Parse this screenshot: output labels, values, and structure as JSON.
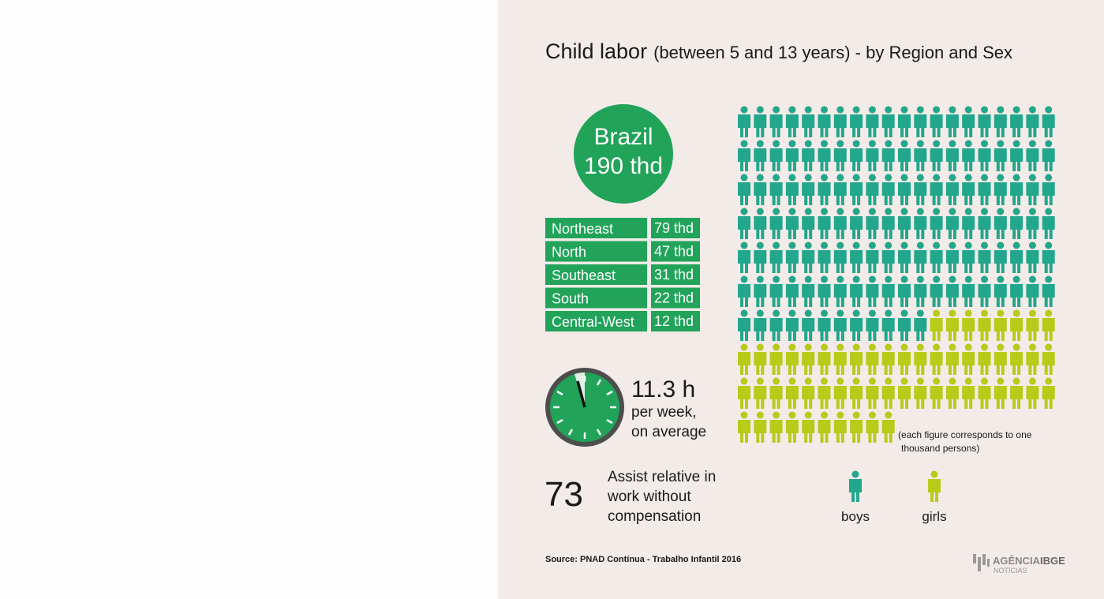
{
  "title": {
    "main": "Child labor",
    "sub": "(between 5 and 13 years) - by Region and Sex"
  },
  "brazil": {
    "name": "Brazil",
    "value": "190 thd"
  },
  "regions": [
    {
      "name": "Northeast",
      "value": "79 thd"
    },
    {
      "name": "North",
      "value": "47 thd"
    },
    {
      "name": "Southeast",
      "value": "31 thd"
    },
    {
      "name": "South",
      "value": "22 thd"
    },
    {
      "name": "Central-West",
      "value": "12 thd"
    }
  ],
  "hours": {
    "value": "11.3 h",
    "lines": [
      "per week,",
      "on average"
    ]
  },
  "assist": {
    "value": "73",
    "lines": [
      "Assist relative in",
      "work without",
      "compensation"
    ]
  },
  "chart_data": {
    "type": "pictogram",
    "note": [
      "(each figure corresponds to one",
      "thousand persons)"
    ],
    "series": [
      {
        "name": "boys",
        "color": "#22a68c",
        "value": 132
      },
      {
        "name": "girls",
        "color": "#b5cc18",
        "value": 58
      }
    ]
  },
  "source": "Source: PNAD Contínua - Trabalho Infantil 2016",
  "logo": {
    "main": "AGÊNCIA",
    "brand": "IBGE",
    "sub": "NOTÍCIAS"
  }
}
